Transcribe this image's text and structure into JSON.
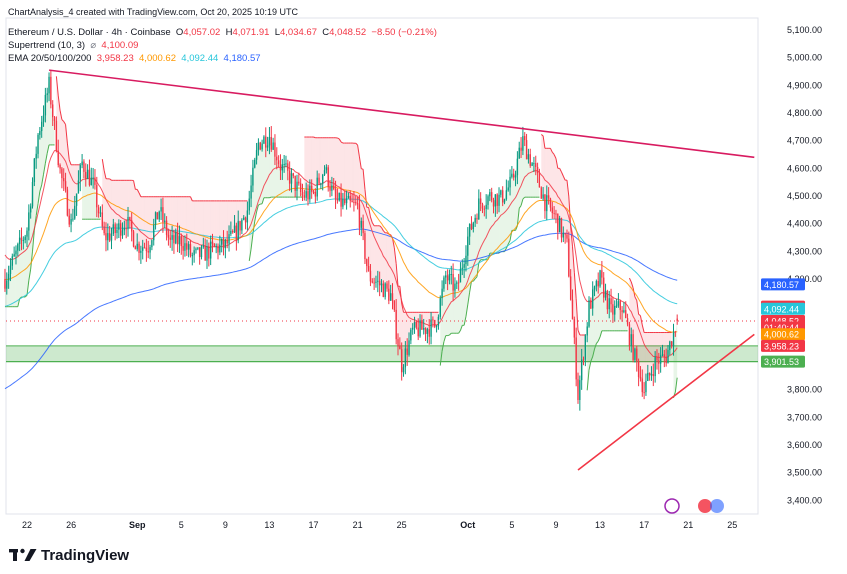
{
  "header": {
    "attribution": "ChartAnalysis_4 created with TradingView.com, Oct 20, 2025 10:19 UTC",
    "symbol": "Ethereum / U.S. Dollar · 4h · Coinbase",
    "o_label": "O",
    "o_value": "4,057.02",
    "h_label": "H",
    "h_value": "4,071.91",
    "l_label": "L",
    "l_value": "4,034.67",
    "c_label": "C",
    "c_value": "4,048.52",
    "change": "−8.50 (−0.21%)",
    "supertrend_label": "Supertrend (10, 3)",
    "supertrend_sep": "⌀",
    "supertrend_value": "4,100.09",
    "ema_label": "EMA 20/50/100/200",
    "ema20": "3,958.23",
    "ema50": "4,000.62",
    "ema100": "4,092.44",
    "ema200": "4,180.57"
  },
  "brand": {
    "name": "TradingView",
    "logo_icon": "tradingview-logo-icon"
  },
  "colors": {
    "bull": "#089981",
    "bear": "#f23645",
    "trend_upper": "#d81b60",
    "trend_lower": "#f23645",
    "zone": "#4caf50",
    "ema20": "#f23645",
    "ema50": "#ff9800",
    "ema100": "#26c6da",
    "ema200": "#2962ff",
    "supertrend_up": "#4caf50",
    "supertrend_down": "#f23645"
  },
  "chart_data": {
    "type": "candlestick",
    "title": "Ethereum / U.S. Dollar · 4h · Coinbase",
    "y_ticks": [
      "5,100.00",
      "5,000.00",
      "4,900.00",
      "4,800.00",
      "4,700.00",
      "4,600.00",
      "4,500.00",
      "4,400.00",
      "4,300.00",
      "4,200.00",
      "3,800.00",
      "3,700.00",
      "3,600.00",
      "3,500.00",
      "3,400.00"
    ],
    "y_tick_values": [
      5100,
      5000,
      4900,
      4800,
      4700,
      4600,
      4500,
      4400,
      4300,
      4200,
      3800,
      3700,
      3600,
      3500,
      3400
    ],
    "ylim": [
      3380,
      5125
    ],
    "x_ticks": [
      "22",
      "26",
      "Sep",
      "5",
      "9",
      "13",
      "17",
      "21",
      "25",
      "Oct",
      "5",
      "9",
      "13",
      "17",
      "21",
      "25"
    ],
    "x_tick_dates": [
      "2025-08-22",
      "2025-08-26",
      "2025-09-01",
      "2025-09-05",
      "2025-09-09",
      "2025-09-13",
      "2025-09-17",
      "2025-09-21",
      "2025-09-25",
      "2025-10-01",
      "2025-10-05",
      "2025-10-09",
      "2025-10-13",
      "2025-10-17",
      "2025-10-21",
      "2025-10-25"
    ],
    "x_tick_bold": [
      "Sep",
      "Oct"
    ],
    "price_labels": [
      {
        "value": 4180.57,
        "text": "4,180.57",
        "color": "#2962ff",
        "name": "EMA 200"
      },
      {
        "value": 4100.09,
        "text": "4,100.09",
        "color": "#f23645",
        "name": "Supertrend"
      },
      {
        "value": 4092.44,
        "text": "4,092.44",
        "color": "#26c6da",
        "name": "EMA 100"
      },
      {
        "value": 4048.52,
        "text": "4,048.52",
        "color": "#f23645",
        "name": "Close"
      },
      {
        "value": 4025,
        "text": "01:40:44",
        "color": "#f23645",
        "name": "Countdown"
      },
      {
        "value": 4000.62,
        "text": "4,000.62",
        "color": "#ff9800",
        "name": "EMA 50"
      },
      {
        "value": 3958.23,
        "text": "3,958.23",
        "color": "#f23645",
        "name": "EMA 20"
      },
      {
        "value": 3901.53,
        "text": "3,901.53",
        "color": "#4caf50",
        "name": "Support zone"
      }
    ],
    "support_zone": [
      3901.53,
      3958.23
    ],
    "trendlines": [
      {
        "name": "descending resistance",
        "from": [
          "2025-08-24",
          4955
        ],
        "to": [
          "2025-10-27",
          4640
        ]
      },
      {
        "name": "ascending support",
        "from": [
          "2025-10-11",
          3510
        ],
        "to": [
          "2025-10-27",
          4000
        ]
      }
    ],
    "current_close": 4048.52,
    "ohlc_last": {
      "open": 4057.02,
      "high": 4071.91,
      "low": 4034.67,
      "close": 4048.52
    },
    "path": [
      [
        "2025-08-20",
        4200
      ],
      [
        "2025-08-21",
        4290
      ],
      [
        "2025-08-22",
        4380
      ],
      [
        "2025-08-23",
        4720
      ],
      [
        "2025-08-24",
        4900
      ],
      [
        "2025-08-25",
        4590
      ],
      [
        "2025-08-26",
        4400
      ],
      [
        "2025-08-27",
        4620
      ],
      [
        "2025-08-28",
        4540
      ],
      [
        "2025-08-29",
        4350
      ],
      [
        "2025-08-30",
        4370
      ],
      [
        "2025-08-31",
        4410
      ],
      [
        "2025-09-01",
        4320
      ],
      [
        "2025-09-02",
        4320
      ],
      [
        "2025-09-03",
        4450
      ],
      [
        "2025-09-04",
        4330
      ],
      [
        "2025-09-05",
        4340
      ],
      [
        "2025-09-06",
        4280
      ],
      [
        "2025-09-07",
        4290
      ],
      [
        "2025-09-08",
        4310
      ],
      [
        "2025-09-09",
        4320
      ],
      [
        "2025-09-10",
        4370
      ],
      [
        "2025-09-11",
        4450
      ],
      [
        "2025-09-12",
        4690
      ],
      [
        "2025-09-13",
        4720
      ],
      [
        "2025-09-14",
        4610
      ],
      [
        "2025-09-15",
        4560
      ],
      [
        "2025-09-16",
        4500
      ],
      [
        "2025-09-17",
        4510
      ],
      [
        "2025-09-18",
        4600
      ],
      [
        "2025-09-19",
        4480
      ],
      [
        "2025-09-20",
        4470
      ],
      [
        "2025-09-21",
        4460
      ],
      [
        "2025-09-22",
        4210
      ],
      [
        "2025-09-23",
        4180
      ],
      [
        "2025-09-24",
        4140
      ],
      [
        "2025-09-25",
        3890
      ],
      [
        "2025-09-26",
        4010
      ],
      [
        "2025-09-27",
        4020
      ],
      [
        "2025-09-28",
        4030
      ],
      [
        "2025-09-29",
        4210
      ],
      [
        "2025-09-30",
        4160
      ],
      [
        "2025-10-01",
        4350
      ],
      [
        "2025-10-02",
        4470
      ],
      [
        "2025-10-03",
        4500
      ],
      [
        "2025-10-04",
        4490
      ],
      [
        "2025-10-05",
        4550
      ],
      [
        "2025-10-06",
        4700
      ],
      [
        "2025-10-07",
        4600
      ],
      [
        "2025-10-08",
        4480
      ],
      [
        "2025-10-09",
        4420
      ],
      [
        "2025-10-10",
        4320
      ],
      [
        "2025-10-11",
        3780
      ],
      [
        "2025-10-12",
        4100
      ],
      [
        "2025-10-13",
        4200
      ],
      [
        "2025-10-14",
        4080
      ],
      [
        "2025-10-15",
        4100
      ],
      [
        "2025-10-16",
        3940
      ],
      [
        "2025-10-17",
        3800
      ],
      [
        "2025-10-18",
        3900
      ],
      [
        "2025-10-19",
        3920
      ],
      [
        "2025-10-20",
        4048.52
      ]
    ]
  }
}
